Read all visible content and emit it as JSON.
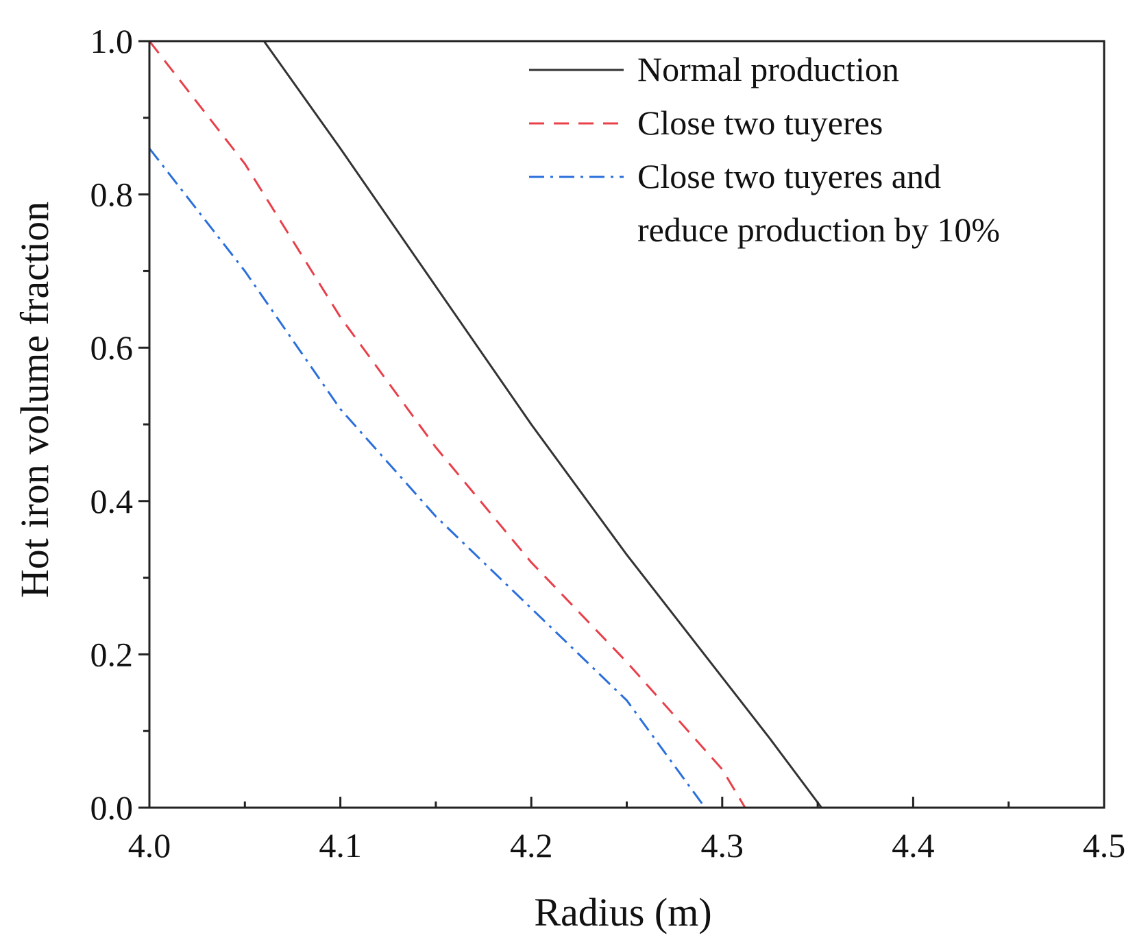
{
  "chart_data": {
    "type": "line",
    "title": "",
    "xlabel": "Radius (m)",
    "ylabel": "Hot iron volume fraction",
    "xlim": [
      4.0,
      4.5
    ],
    "ylim": [
      0.0,
      1.0
    ],
    "xticks": [
      4.0,
      4.1,
      4.2,
      4.3,
      4.4,
      4.5
    ],
    "xtick_labels": [
      "4.0",
      "4.1",
      "4.2",
      "4.3",
      "4.4",
      "4.5"
    ],
    "yticks": [
      0.0,
      0.2,
      0.4,
      0.6,
      0.8,
      1.0
    ],
    "ytick_labels": [
      "0.0",
      "0.2",
      "0.4",
      "0.6",
      "0.8",
      "1.0"
    ],
    "grid": false,
    "legend_position": "top-right",
    "series": [
      {
        "name": "Normal production",
        "color": "#333333",
        "style": "solid",
        "x": [
          4.0,
          4.06,
          4.1,
          4.15,
          4.2,
          4.25,
          4.3,
          4.325,
          4.352,
          4.5
        ],
        "y": [
          1.0,
          1.0,
          0.86,
          0.68,
          0.5,
          0.33,
          0.17,
          0.09,
          0.0,
          0.0
        ]
      },
      {
        "name": "Close two tuyeres",
        "color": "#e8404a",
        "style": "dashed",
        "x": [
          4.0,
          4.05,
          4.1,
          4.15,
          4.2,
          4.25,
          4.3,
          4.312,
          4.5
        ],
        "y": [
          1.0,
          0.84,
          0.64,
          0.47,
          0.32,
          0.19,
          0.05,
          0.0,
          0.0
        ]
      },
      {
        "name": "Close two tuyeres and reduce production by 10%",
        "legend_lines": [
          "Close two tuyeres and",
          "reduce production by 10%"
        ],
        "color": "#2a6fdc",
        "style": "dashdot",
        "x": [
          4.0,
          4.05,
          4.1,
          4.15,
          4.2,
          4.25,
          4.291,
          4.5
        ],
        "y": [
          0.86,
          0.7,
          0.52,
          0.38,
          0.26,
          0.14,
          0.0,
          0.0
        ]
      }
    ]
  }
}
